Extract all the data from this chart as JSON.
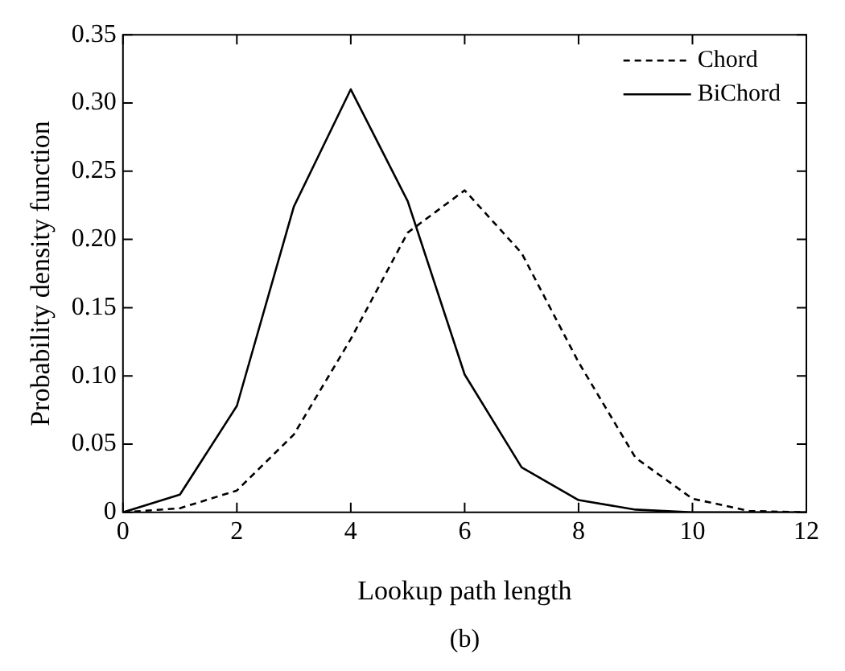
{
  "chart_data": {
    "type": "line",
    "xlabel": "Lookup path length",
    "ylabel": "Probability density function",
    "annotations": [
      "(b)"
    ],
    "x": [
      0,
      1,
      2,
      3,
      4,
      5,
      6,
      7,
      8,
      9,
      10,
      11,
      12
    ],
    "series": [
      {
        "name": "Chord",
        "color": "#000000",
        "line_style": "dashed",
        "values": [
          0,
          0.003,
          0.016,
          0.057,
          0.127,
          0.205,
          0.236,
          0.19,
          0.11,
          0.04,
          0.01,
          0.001,
          0
        ]
      },
      {
        "name": "BiChord",
        "color": "#000000",
        "line_style": "solid",
        "values": [
          0,
          0.013,
          0.078,
          0.224,
          0.31,
          0.228,
          0.101,
          0.033,
          0.009,
          0.002,
          0,
          0,
          0
        ]
      }
    ],
    "xlim": [
      0,
      12
    ],
    "xticks": [
      0,
      2,
      4,
      6,
      8,
      10,
      12
    ],
    "ylim": [
      0,
      0.35
    ],
    "yticks": [
      0,
      0.05,
      {
        "value": 0.1,
        "label": "0.10"
      },
      0.15,
      {
        "value": 0.2,
        "label": "0.20"
      },
      0.25,
      {
        "value": 0.3,
        "label": "0.30"
      },
      0.35
    ],
    "grid": false,
    "legend": "top right",
    "marker": "none"
  }
}
